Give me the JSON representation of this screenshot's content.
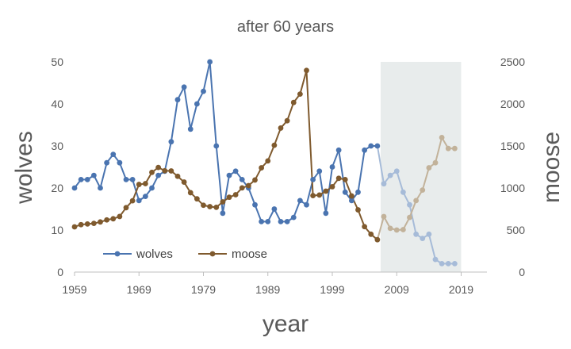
{
  "chart_data": {
    "type": "line",
    "title": "after 60 years",
    "xlabel": "year",
    "ylabel": "wolves",
    "y2label": "moose",
    "xticks": [
      1959,
      1969,
      1979,
      1989,
      1999,
      2009,
      2019
    ],
    "xlim": [
      1959,
      2023
    ],
    "ylim": [
      0,
      50
    ],
    "yticks": [
      0,
      10,
      20,
      30,
      40,
      50
    ],
    "y2lim": [
      0,
      2500
    ],
    "y2ticks": [
      0,
      500,
      1000,
      1500,
      2000,
      2500
    ],
    "grid": false,
    "legend_position": "bottom-left",
    "shaded_region": {
      "x_from": 2006.5,
      "x_to": 2019,
      "color": "#e8ecec"
    },
    "series": [
      {
        "name": "wolves",
        "axis": "left",
        "color": "#4a74b0",
        "faded_color": "#a6bbd8",
        "x": [
          1959,
          1960,
          1961,
          1962,
          1963,
          1964,
          1965,
          1966,
          1967,
          1968,
          1969,
          1970,
          1971,
          1972,
          1973,
          1974,
          1975,
          1976,
          1977,
          1978,
          1979,
          1980,
          1981,
          1982,
          1983,
          1984,
          1985,
          1986,
          1987,
          1988,
          1989,
          1990,
          1991,
          1992,
          1993,
          1994,
          1995,
          1996,
          1997,
          1998,
          1999,
          2000,
          2001,
          2002,
          2003,
          2004,
          2005,
          2006,
          2007,
          2008,
          2009,
          2010,
          2011,
          2012,
          2013,
          2014,
          2015,
          2016,
          2017,
          2018
        ],
        "values": [
          20,
          22,
          22,
          23,
          20,
          26,
          28,
          26,
          22,
          22,
          17,
          18,
          20,
          23,
          24,
          31,
          41,
          44,
          34,
          40,
          43,
          50,
          30,
          14,
          23,
          24,
          22,
          20,
          16,
          12,
          12,
          15,
          12,
          12,
          13,
          17,
          16,
          22,
          24,
          14,
          25,
          29,
          19,
          17,
          19,
          29,
          30,
          30,
          21,
          23,
          24,
          19,
          16,
          9,
          8,
          9,
          3,
          2,
          2,
          2
        ]
      },
      {
        "name": "moose",
        "axis": "right",
        "color": "#7f5a2e",
        "faded_color": "#c2b29a",
        "x": [
          1959,
          1960,
          1961,
          1962,
          1963,
          1964,
          1965,
          1966,
          1967,
          1968,
          1969,
          1970,
          1971,
          1972,
          1973,
          1974,
          1975,
          1976,
          1977,
          1978,
          1979,
          1980,
          1981,
          1982,
          1983,
          1984,
          1985,
          1986,
          1987,
          1988,
          1989,
          1990,
          1991,
          1992,
          1993,
          1994,
          1995,
          1996,
          1997,
          1998,
          1999,
          2000,
          2001,
          2002,
          2003,
          2004,
          2005,
          2006,
          2007,
          2008,
          2009,
          2010,
          2011,
          2012,
          2013,
          2014,
          2015,
          2016,
          2017,
          2018
        ],
        "values": [
          538,
          564,
          572,
          579,
          596,
          620,
          634,
          661,
          766,
          848,
          1042,
          1052,
          1186,
          1244,
          1205,
          1203,
          1139,
          1070,
          944,
          871,
          795,
          778,
          770,
          835,
          890,
          920,
          1001,
          1028,
          1095,
          1240,
          1322,
          1508,
          1713,
          1800,
          2017,
          2117,
          2398,
          909,
          916,
          962,
          1015,
          1115,
          1100,
          905,
          740,
          540,
          450,
          385,
          660,
          520,
          500,
          505,
          650,
          850,
          975,
          1240,
          1300,
          1600,
          1470,
          1470
        ]
      }
    ]
  }
}
